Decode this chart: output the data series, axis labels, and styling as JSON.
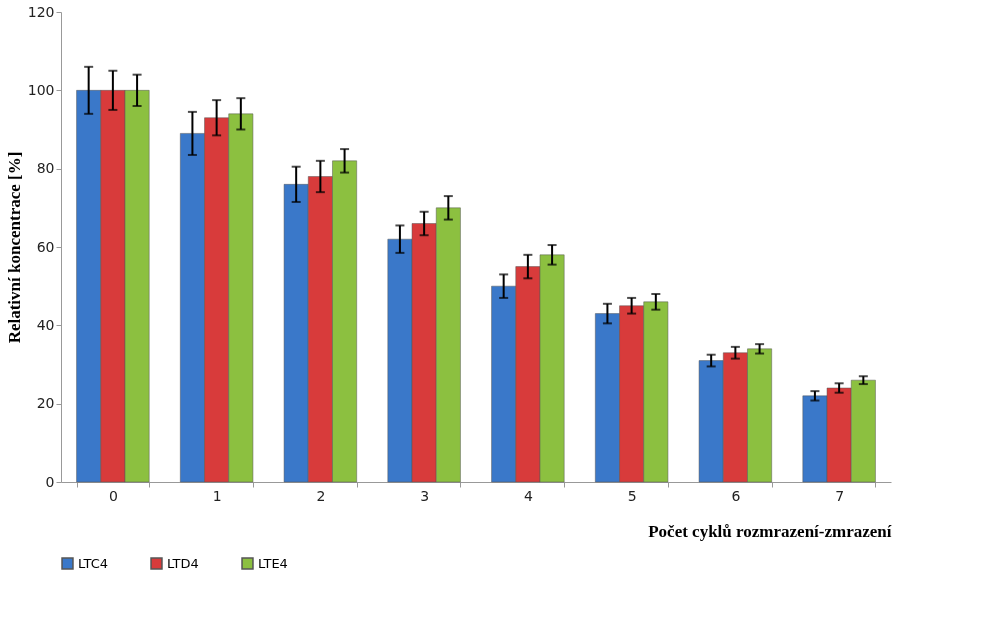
{
  "chart_data": {
    "type": "bar",
    "xlabel": "Počet cyklů rozmrazení-zmrazení",
    "ylabel": "Relativní koncentrace [%]",
    "categories": [
      "0",
      "1",
      "2",
      "3",
      "4",
      "5",
      "6",
      "7"
    ],
    "series": [
      {
        "name": "LTC4",
        "color": "#3a78c9",
        "values": [
          100,
          89,
          76,
          62,
          50,
          43,
          31,
          22
        ],
        "errors": [
          6,
          5.5,
          4.5,
          3.5,
          3,
          2.5,
          1.5,
          1.2
        ]
      },
      {
        "name": "LTD4",
        "color": "#d83b3b",
        "values": [
          100,
          93,
          78,
          66,
          55,
          45,
          33,
          24
        ],
        "errors": [
          5,
          4.5,
          4,
          3,
          3,
          2,
          1.5,
          1.2
        ]
      },
      {
        "name": "LTE4",
        "color": "#8cc040",
        "values": [
          100,
          94,
          82,
          70,
          58,
          46,
          34,
          26
        ],
        "errors": [
          4,
          4,
          3,
          3,
          2.5,
          2,
          1.2,
          1
        ]
      }
    ],
    "ylim": [
      0,
      120
    ],
    "yticks": [
      0,
      20,
      40,
      60,
      80,
      100,
      120
    ],
    "grid": false,
    "legend": "bottom"
  }
}
